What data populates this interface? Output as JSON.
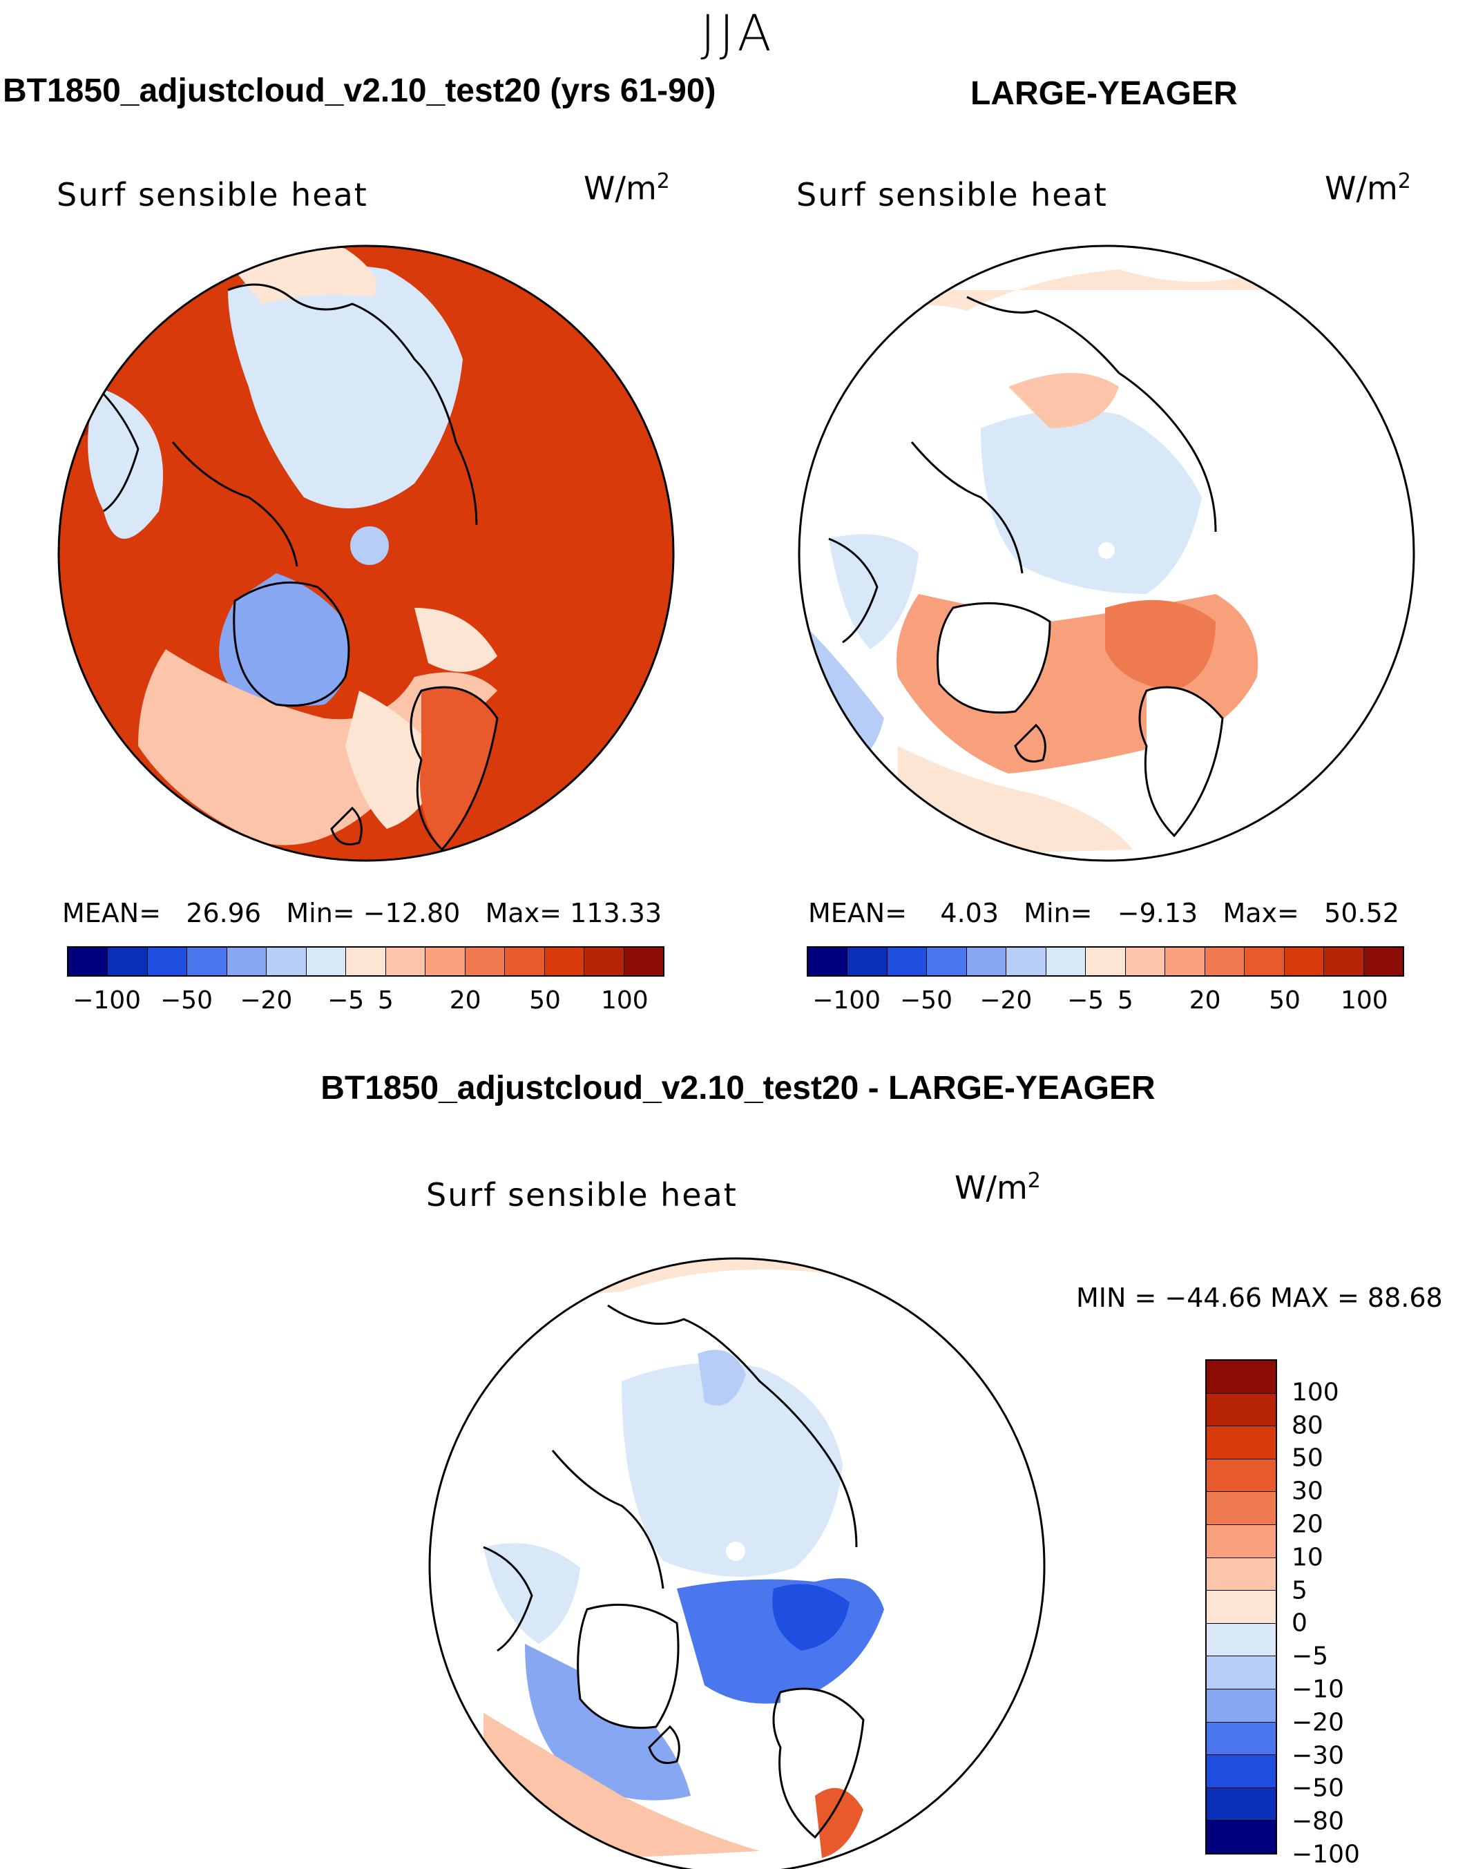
{
  "figure": {
    "season": "JJA",
    "colors": {
      "d1": "#00007f",
      "d2": "#0b2fb8",
      "d3": "#1f4fe0",
      "d4": "#4a77ee",
      "d5": "#87a7f2",
      "d6": "#b5cdf7",
      "d7": "#d8e8f9",
      "w1": "#fde5d4",
      "w2": "#fcc4a8",
      "w3": "#f8a07c",
      "w4": "#f07a50",
      "w5": "#e85a2c",
      "w6": "#d83a0c",
      "w7": "#b82408",
      "w8": "#8a0c04"
    }
  },
  "panels": {
    "model": {
      "title": "BT1850_adjustcloud_v2.10_test20 (yrs 61-90)",
      "variable": "Surf sensible heat",
      "units_base": "W/m",
      "units_exp": "2",
      "stats": {
        "mean_label": "MEAN=",
        "mean": "26.96",
        "min_label": "Min=",
        "min": "−12.80",
        "max_label": "Max=",
        "max": "113.33"
      },
      "colorbar": {
        "bins": [
          "d1",
          "d2",
          "d3",
          "d4",
          "d5",
          "d6",
          "d7",
          "w1",
          "w2",
          "w3",
          "w4",
          "w5",
          "w6",
          "w7",
          "w8"
        ],
        "tick_labels": [
          "−100",
          "−50",
          "−20",
          "−5",
          "5",
          "20",
          "50",
          "100"
        ]
      }
    },
    "obs": {
      "title": "LARGE-YEAGER",
      "variable": "Surf sensible heat",
      "units_base": "W/m",
      "units_exp": "2",
      "stats": {
        "mean_label": "MEAN=",
        "mean": "4.03",
        "min_label": "Min=",
        "min": "−9.13",
        "max_label": "Max=",
        "max": "50.52"
      },
      "colorbar": {
        "bins": [
          "d1",
          "d2",
          "d3",
          "d4",
          "d5",
          "d6",
          "d7",
          "w1",
          "w2",
          "w3",
          "w4",
          "w5",
          "w6",
          "w7",
          "w8"
        ],
        "tick_labels": [
          "−100",
          "−50",
          "−20",
          "−5",
          "5",
          "20",
          "50",
          "100"
        ]
      }
    },
    "diff": {
      "title": "BT1850_adjustcloud_v2.10_test20 - LARGE-YEAGER",
      "variable": "Surf sensible heat",
      "units_base": "W/m",
      "units_exp": "2",
      "minmax": "MIN = −44.66  MAX =   88.68",
      "colorbar": {
        "bins_top_to_bottom": [
          "w8",
          "w7",
          "w6",
          "w5",
          "w4",
          "w3",
          "w2",
          "w1",
          "d7",
          "d6",
          "d5",
          "d4",
          "d3",
          "d2",
          "d1"
        ],
        "labels": [
          "100",
          "80",
          "50",
          "30",
          "20",
          "10",
          "5",
          "0",
          "−5",
          "−10",
          "−20",
          "−30",
          "−50",
          "−80",
          "−100"
        ]
      }
    }
  }
}
